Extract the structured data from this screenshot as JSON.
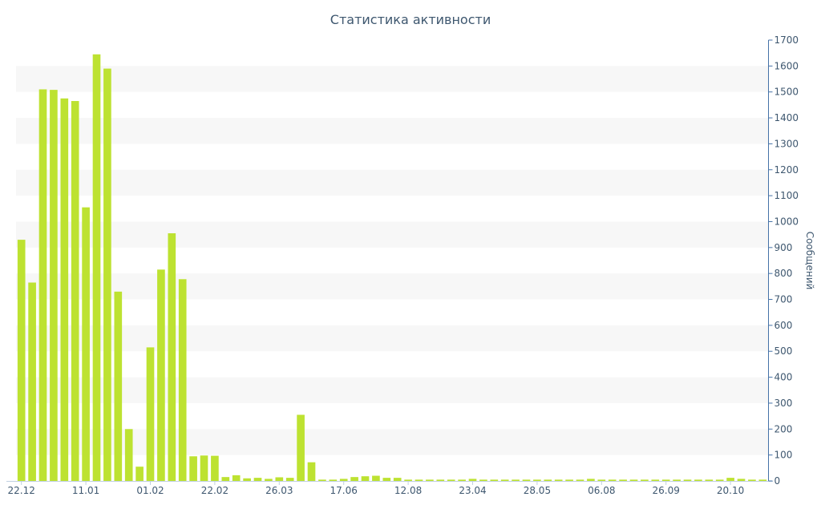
{
  "chart_data": {
    "type": "bar",
    "title": "Статистика активности",
    "ylabel": "Сообщений",
    "xlabel": "",
    "ylim": [
      0,
      1700
    ],
    "y_ticks": [
      0,
      100,
      200,
      300,
      400,
      500,
      600,
      700,
      800,
      900,
      1000,
      1100,
      1200,
      1300,
      1400,
      1500,
      1600,
      1700
    ],
    "y_axis_position": "right",
    "grid": "alternating horizontal bands",
    "legend": "none",
    "x_tick_labels": [
      {
        "index": 0,
        "label": "22.12"
      },
      {
        "index": 6,
        "label": "11.01"
      },
      {
        "index": 12,
        "label": "01.02"
      },
      {
        "index": 18,
        "label": "22.02"
      },
      {
        "index": 24,
        "label": "26.03"
      },
      {
        "index": 30,
        "label": "17.06"
      },
      {
        "index": 36,
        "label": "12.08"
      },
      {
        "index": 42,
        "label": "23.04"
      },
      {
        "index": 48,
        "label": "28.05"
      },
      {
        "index": 54,
        "label": "06.08"
      },
      {
        "index": 60,
        "label": "26.09"
      },
      {
        "index": 66,
        "label": "20.10"
      }
    ],
    "values": [
      930,
      765,
      1510,
      1508,
      1475,
      1465,
      1055,
      1645,
      1590,
      730,
      200,
      55,
      515,
      815,
      955,
      778,
      95,
      98,
      97,
      15,
      22,
      10,
      12,
      8,
      14,
      12,
      255,
      72,
      5,
      5,
      8,
      15,
      18,
      20,
      12,
      12,
      5,
      5,
      5,
      5,
      5,
      5,
      8,
      5,
      5,
      5,
      5,
      5,
      5,
      5,
      5,
      5,
      5,
      8,
      5,
      5,
      5,
      5,
      5,
      5,
      5,
      5,
      5,
      5,
      5,
      5,
      12,
      8,
      5,
      5
    ],
    "colors": {
      "bar": "#bde231",
      "band": "#f7f7f7",
      "axis": "#4572a7",
      "text": "#3e576f",
      "axis_line": "#c0d0e0"
    }
  }
}
